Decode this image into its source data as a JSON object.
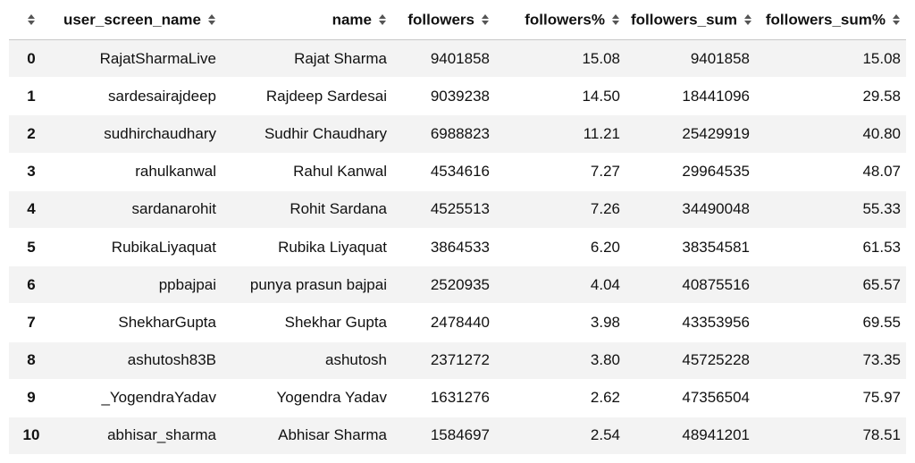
{
  "table": {
    "columns": [
      {
        "key": "index",
        "label": ""
      },
      {
        "key": "user_screen_name",
        "label": "user_screen_name"
      },
      {
        "key": "name",
        "label": "name"
      },
      {
        "key": "followers",
        "label": "followers"
      },
      {
        "key": "followers_pct",
        "label": "followers%"
      },
      {
        "key": "followers_sum",
        "label": "followers_sum"
      },
      {
        "key": "followers_sum_pct",
        "label": "followers_sum%"
      }
    ],
    "sort_icon": "sort-updown-icon",
    "rows": [
      {
        "index": "0",
        "user_screen_name": "RajatSharmaLive",
        "name": "Rajat Sharma",
        "followers": "9401858",
        "followers_pct": "15.08",
        "followers_sum": "9401858",
        "followers_sum_pct": "15.08"
      },
      {
        "index": "1",
        "user_screen_name": "sardesairajdeep",
        "name": "Rajdeep Sardesai",
        "followers": "9039238",
        "followers_pct": "14.50",
        "followers_sum": "18441096",
        "followers_sum_pct": "29.58"
      },
      {
        "index": "2",
        "user_screen_name": "sudhirchaudhary",
        "name": "Sudhir Chaudhary",
        "followers": "6988823",
        "followers_pct": "11.21",
        "followers_sum": "25429919",
        "followers_sum_pct": "40.80"
      },
      {
        "index": "3",
        "user_screen_name": "rahulkanwal",
        "name": "Rahul Kanwal",
        "followers": "4534616",
        "followers_pct": "7.27",
        "followers_sum": "29964535",
        "followers_sum_pct": "48.07"
      },
      {
        "index": "4",
        "user_screen_name": "sardanarohit",
        "name": "Rohit Sardana",
        "followers": "4525513",
        "followers_pct": "7.26",
        "followers_sum": "34490048",
        "followers_sum_pct": "55.33"
      },
      {
        "index": "5",
        "user_screen_name": "RubikaLiyaquat",
        "name": "Rubika Liyaquat",
        "followers": "3864533",
        "followers_pct": "6.20",
        "followers_sum": "38354581",
        "followers_sum_pct": "61.53"
      },
      {
        "index": "6",
        "user_screen_name": "ppbajpai",
        "name": "punya prasun bajpai",
        "followers": "2520935",
        "followers_pct": "4.04",
        "followers_sum": "40875516",
        "followers_sum_pct": "65.57"
      },
      {
        "index": "7",
        "user_screen_name": "ShekharGupta",
        "name": "Shekhar Gupta",
        "followers": "2478440",
        "followers_pct": "3.98",
        "followers_sum": "43353956",
        "followers_sum_pct": "69.55"
      },
      {
        "index": "8",
        "user_screen_name": "ashutosh83B",
        "name": "ashutosh",
        "followers": "2371272",
        "followers_pct": "3.80",
        "followers_sum": "45725228",
        "followers_sum_pct": "73.35"
      },
      {
        "index": "9",
        "user_screen_name": "_YogendraYadav",
        "name": "Yogendra Yadav",
        "followers": "1631276",
        "followers_pct": "2.62",
        "followers_sum": "47356504",
        "followers_sum_pct": "75.97"
      },
      {
        "index": "10",
        "user_screen_name": "abhisar_sharma",
        "name": "Abhisar Sharma",
        "followers": "1584697",
        "followers_pct": "2.54",
        "followers_sum": "48941201",
        "followers_sum_pct": "78.51"
      }
    ]
  }
}
